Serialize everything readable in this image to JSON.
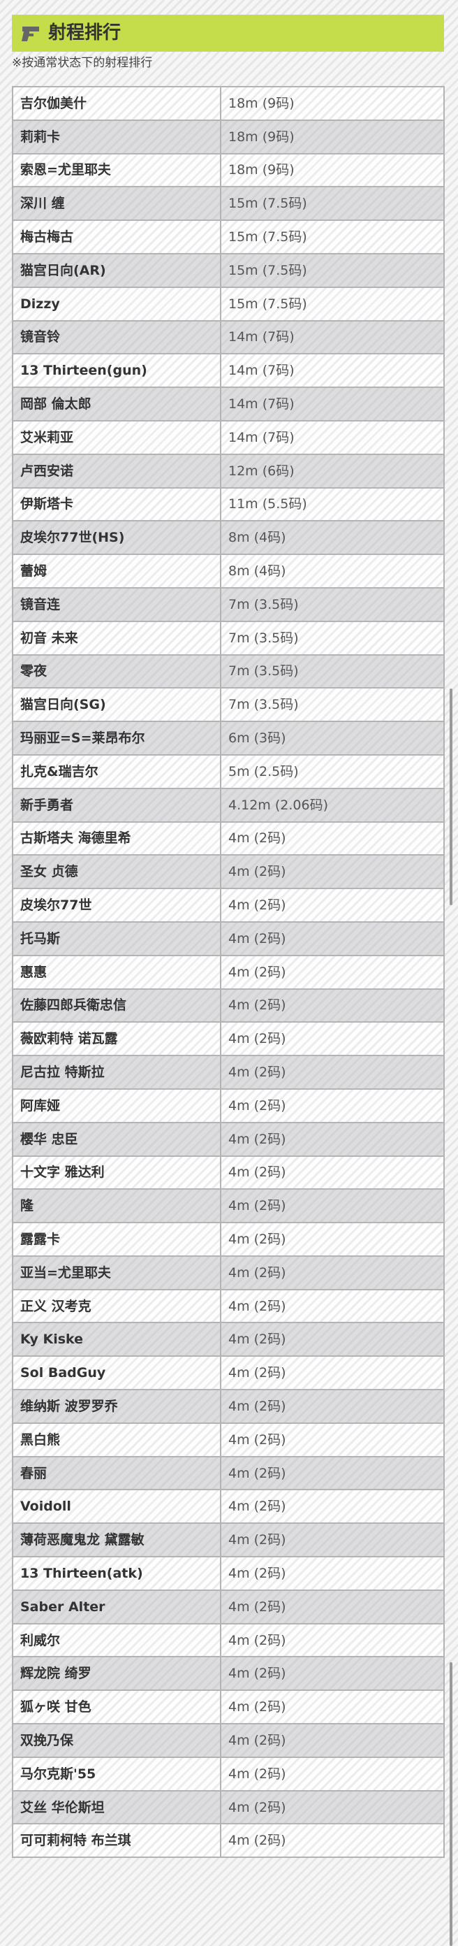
{
  "header": {
    "title": "射程排行",
    "icon": "gun-icon",
    "accent": "#c5dc4b"
  },
  "note": "※按通常状态下的射程排行",
  "rows": [
    {
      "name": "吉尔伽美什",
      "range": "18m (9码)"
    },
    {
      "name": "莉莉卡",
      "range": "18m (9码)"
    },
    {
      "name": "索恩=尤里耶夫",
      "range": "18m (9码)"
    },
    {
      "name": "深川 缠",
      "range": "15m (7.5码)"
    },
    {
      "name": "梅古梅古",
      "range": "15m (7.5码)"
    },
    {
      "name": "猫宫日向(AR)",
      "range": "15m (7.5码)"
    },
    {
      "name": "Dizzy",
      "range": "15m (7.5码)"
    },
    {
      "name": "镜音铃",
      "range": "14m (7码)"
    },
    {
      "name": "13 Thirteen(gun)",
      "range": "14m (7码)"
    },
    {
      "name": "岡部 倫太郎",
      "range": "14m (7码)"
    },
    {
      "name": "艾米莉亚",
      "range": "14m (7码)"
    },
    {
      "name": "卢西安诺",
      "range": "12m (6码)"
    },
    {
      "name": "伊斯塔卡",
      "range": "11m (5.5码)"
    },
    {
      "name": "皮埃尔77世(HS)",
      "range": "8m (4码)"
    },
    {
      "name": "蕾姆",
      "range": "8m (4码)"
    },
    {
      "name": "镜音连",
      "range": "7m (3.5码)"
    },
    {
      "name": "初音 未来",
      "range": "7m (3.5码)"
    },
    {
      "name": "零夜",
      "range": "7m (3.5码)"
    },
    {
      "name": "猫宫日向(SG)",
      "range": "7m (3.5码)"
    },
    {
      "name": "玛丽亚=S=莱昂布尔",
      "range": "6m (3码)"
    },
    {
      "name": "扎克&瑞吉尔",
      "range": "5m (2.5码)"
    },
    {
      "name": "新手勇者",
      "range": "4.12m (2.06码)"
    },
    {
      "name": "古斯塔夫 海德里希",
      "range": "4m (2码)"
    },
    {
      "name": "圣女 贞德",
      "range": "4m (2码)"
    },
    {
      "name": "皮埃尔77世",
      "range": "4m (2码)"
    },
    {
      "name": "托马斯",
      "range": "4m (2码)"
    },
    {
      "name": "惠惠",
      "range": "4m (2码)"
    },
    {
      "name": "佐藤四郎兵衛忠信",
      "range": "4m (2码)"
    },
    {
      "name": "薇欧莉特 诺瓦露",
      "range": "4m (2码)"
    },
    {
      "name": "尼古拉 特斯拉",
      "range": "4m (2码)"
    },
    {
      "name": "阿库娅",
      "range": "4m (2码)"
    },
    {
      "name": "樱华 忠臣",
      "range": "4m (2码)"
    },
    {
      "name": "十文字 雅达利",
      "range": "4m (2码)"
    },
    {
      "name": "隆",
      "range": "4m (2码)"
    },
    {
      "name": "露露卡",
      "range": "4m (2码)"
    },
    {
      "name": "亚当=尤里耶夫",
      "range": "4m (2码)"
    },
    {
      "name": "正义 汉考克",
      "range": "4m (2码)"
    },
    {
      "name": "Ky Kiske",
      "range": "4m (2码)"
    },
    {
      "name": "Sol BadGuy",
      "range": "4m (2码)"
    },
    {
      "name": "维纳斯 波罗罗乔",
      "range": "4m (2码)"
    },
    {
      "name": "黑白熊",
      "range": "4m (2码)"
    },
    {
      "name": "春丽",
      "range": "4m (2码)"
    },
    {
      "name": "Voidoll",
      "range": "4m (2码)"
    },
    {
      "name": "薄荷恶魔鬼龙 黛露敏",
      "range": "4m (2码)"
    },
    {
      "name": "13 Thirteen(atk)",
      "range": "4m (2码)"
    },
    {
      "name": "Saber Alter",
      "range": "4m (2码)"
    },
    {
      "name": "利威尔",
      "range": "4m (2码)"
    },
    {
      "name": "辉龙院 绮罗",
      "range": "4m (2码)"
    },
    {
      "name": "狐ヶ咲 甘色",
      "range": "4m (2码)"
    },
    {
      "name": "双挽乃保",
      "range": "4m (2码)"
    },
    {
      "name": "马尔克斯'55",
      "range": "4m (2码)"
    },
    {
      "name": "艾丝 华伦斯坦",
      "range": "4m (2码)"
    },
    {
      "name": "可可莉柯特 布兰琪",
      "range": "4m (2码)"
    }
  ]
}
